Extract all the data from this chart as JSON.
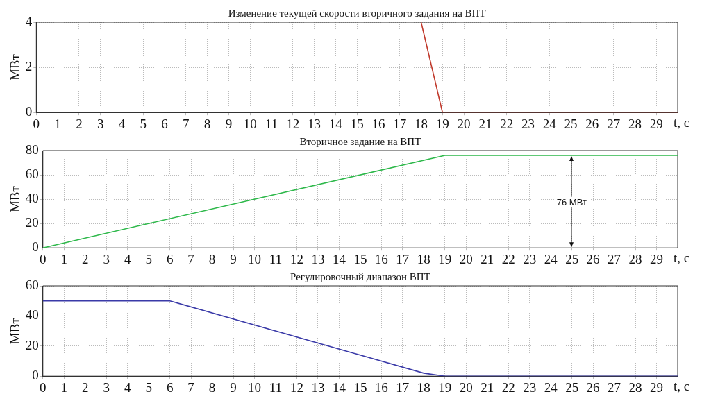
{
  "chart_data": [
    {
      "type": "line",
      "title": "Изменение текущей скорости вторичного задания на ВПТ",
      "xlabel": "t, с",
      "ylabel": "МВт",
      "xlim": [
        0,
        30
      ],
      "xticks": [
        0,
        1,
        2,
        3,
        4,
        5,
        6,
        7,
        8,
        9,
        10,
        11,
        12,
        13,
        14,
        15,
        16,
        17,
        18,
        19,
        20,
        21,
        22,
        23,
        24,
        25,
        26,
        27,
        28,
        29
      ],
      "ylim": [
        0,
        4
      ],
      "yticks": [
        0,
        2,
        4
      ],
      "grid": true,
      "series": [
        {
          "color": "#c0392b",
          "x": [
            18,
            19,
            30
          ],
          "values": [
            4,
            0,
            0
          ]
        }
      ]
    },
    {
      "type": "line",
      "title": "Вторичное задание на ВПТ",
      "xlabel": "t, с",
      "ylabel": "МВт",
      "xlim": [
        0,
        30
      ],
      "xticks": [
        0,
        1,
        2,
        3,
        4,
        5,
        6,
        7,
        8,
        9,
        10,
        11,
        12,
        13,
        14,
        15,
        16,
        17,
        18,
        19,
        20,
        21,
        22,
        23,
        24,
        25,
        26,
        27,
        28,
        29
      ],
      "ylim": [
        0,
        80
      ],
      "yticks": [
        0,
        20,
        40,
        60,
        80
      ],
      "grid": true,
      "series": [
        {
          "color": "#2db84a",
          "x": [
            0,
            19,
            30
          ],
          "values": [
            0,
            76,
            76
          ]
        }
      ],
      "annotations": [
        "76 МВт"
      ]
    },
    {
      "type": "line",
      "title": "Регулировочный диапазон ВПТ",
      "xlabel": "t, с",
      "ylabel": "МВт",
      "xlim": [
        0,
        30
      ],
      "xticks": [
        0,
        1,
        2,
        3,
        4,
        5,
        6,
        7,
        8,
        9,
        10,
        11,
        12,
        13,
        14,
        15,
        16,
        17,
        18,
        19,
        20,
        21,
        22,
        23,
        24,
        25,
        26,
        27,
        28,
        29
      ],
      "ylim": [
        0,
        60
      ],
      "yticks": [
        0,
        20,
        40,
        60
      ],
      "grid": true,
      "series": [
        {
          "color": "#3a3aa8",
          "x": [
            0,
            6,
            18,
            19,
            30
          ],
          "values": [
            50,
            50,
            2,
            0,
            0
          ]
        }
      ]
    }
  ]
}
